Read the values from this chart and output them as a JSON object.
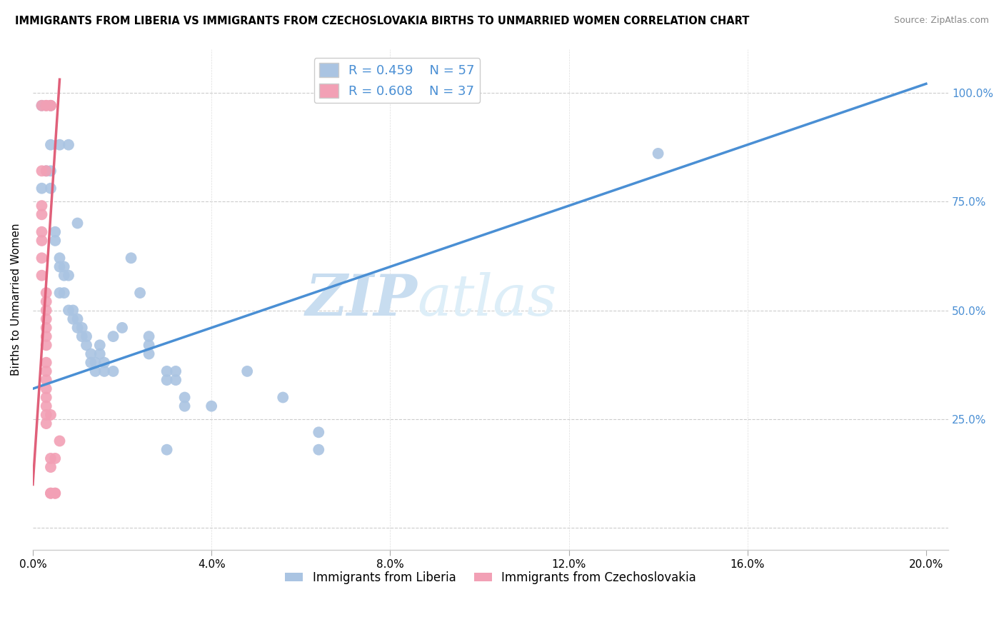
{
  "title": "IMMIGRANTS FROM LIBERIA VS IMMIGRANTS FROM CZECHOSLOVAKIA BIRTHS TO UNMARRIED WOMEN CORRELATION CHART",
  "source": "Source: ZipAtlas.com",
  "ylabel": "Births to Unmarried Women",
  "legend_blue_r": "R = 0.459",
  "legend_blue_n": "N = 57",
  "legend_pink_r": "R = 0.608",
  "legend_pink_n": "N = 37",
  "legend_label_blue": "Immigrants from Liberia",
  "legend_label_pink": "Immigrants from Czechoslovakia",
  "blue_color": "#aac4e2",
  "pink_color": "#f2a0b5",
  "blue_line_color": "#4a8fd4",
  "pink_line_color": "#e0607a",
  "watermark_zip": "ZIP",
  "watermark_atlas": "atlas",
  "watermark_color": "#ddeeff",
  "blue_scatter": [
    [
      0.002,
      0.97
    ],
    [
      0.004,
      0.97
    ],
    [
      0.004,
      0.88
    ],
    [
      0.006,
      0.88
    ],
    [
      0.008,
      0.88
    ],
    [
      0.003,
      0.82
    ],
    [
      0.004,
      0.82
    ],
    [
      0.002,
      0.78
    ],
    [
      0.004,
      0.78
    ],
    [
      0.005,
      0.68
    ],
    [
      0.005,
      0.66
    ],
    [
      0.006,
      0.62
    ],
    [
      0.006,
      0.6
    ],
    [
      0.007,
      0.6
    ],
    [
      0.007,
      0.58
    ],
    [
      0.008,
      0.58
    ],
    [
      0.006,
      0.54
    ],
    [
      0.007,
      0.54
    ],
    [
      0.008,
      0.5
    ],
    [
      0.009,
      0.5
    ],
    [
      0.009,
      0.48
    ],
    [
      0.01,
      0.48
    ],
    [
      0.01,
      0.46
    ],
    [
      0.011,
      0.46
    ],
    [
      0.011,
      0.44
    ],
    [
      0.012,
      0.44
    ],
    [
      0.012,
      0.42
    ],
    [
      0.013,
      0.4
    ],
    [
      0.013,
      0.38
    ],
    [
      0.014,
      0.38
    ],
    [
      0.014,
      0.36
    ],
    [
      0.015,
      0.42
    ],
    [
      0.015,
      0.4
    ],
    [
      0.016,
      0.38
    ],
    [
      0.016,
      0.36
    ],
    [
      0.018,
      0.44
    ],
    [
      0.018,
      0.36
    ],
    [
      0.02,
      0.46
    ],
    [
      0.022,
      0.62
    ],
    [
      0.024,
      0.54
    ],
    [
      0.026,
      0.44
    ],
    [
      0.026,
      0.42
    ],
    [
      0.026,
      0.4
    ],
    [
      0.03,
      0.36
    ],
    [
      0.03,
      0.34
    ],
    [
      0.032,
      0.36
    ],
    [
      0.032,
      0.34
    ],
    [
      0.034,
      0.3
    ],
    [
      0.034,
      0.28
    ],
    [
      0.04,
      0.28
    ],
    [
      0.048,
      0.36
    ],
    [
      0.056,
      0.3
    ],
    [
      0.064,
      0.22
    ],
    [
      0.03,
      0.18
    ],
    [
      0.064,
      0.18
    ],
    [
      0.14,
      0.86
    ],
    [
      0.01,
      0.7
    ]
  ],
  "pink_scatter": [
    [
      0.002,
      0.97
    ],
    [
      0.003,
      0.97
    ],
    [
      0.003,
      0.97
    ],
    [
      0.004,
      0.97
    ],
    [
      0.004,
      0.97
    ],
    [
      0.002,
      0.82
    ],
    [
      0.003,
      0.82
    ],
    [
      0.002,
      0.74
    ],
    [
      0.002,
      0.72
    ],
    [
      0.002,
      0.68
    ],
    [
      0.002,
      0.66
    ],
    [
      0.002,
      0.62
    ],
    [
      0.002,
      0.58
    ],
    [
      0.003,
      0.54
    ],
    [
      0.003,
      0.52
    ],
    [
      0.003,
      0.5
    ],
    [
      0.003,
      0.48
    ],
    [
      0.003,
      0.46
    ],
    [
      0.003,
      0.44
    ],
    [
      0.003,
      0.42
    ],
    [
      0.003,
      0.38
    ],
    [
      0.003,
      0.36
    ],
    [
      0.003,
      0.34
    ],
    [
      0.003,
      0.32
    ],
    [
      0.003,
      0.3
    ],
    [
      0.003,
      0.28
    ],
    [
      0.003,
      0.26
    ],
    [
      0.003,
      0.24
    ],
    [
      0.004,
      0.26
    ],
    [
      0.004,
      0.16
    ],
    [
      0.004,
      0.14
    ],
    [
      0.004,
      0.08
    ],
    [
      0.004,
      0.08
    ],
    [
      0.005,
      0.16
    ],
    [
      0.005,
      0.08
    ],
    [
      0.005,
      0.08
    ],
    [
      0.006,
      0.2
    ]
  ],
  "blue_line_pts": [
    [
      0.0,
      0.32
    ],
    [
      0.2,
      1.02
    ]
  ],
  "pink_line_pts": [
    [
      0.0,
      0.1
    ],
    [
      0.006,
      1.03
    ]
  ],
  "xlim": [
    0.0,
    0.205
  ],
  "ylim": [
    -0.05,
    1.1
  ],
  "x_ticks": [
    0.0,
    0.04,
    0.08,
    0.12,
    0.16,
    0.2
  ],
  "x_tick_labels": [
    "0.0%",
    "4.0%",
    "8.0%",
    "12.0%",
    "16.0%",
    "20.0%"
  ],
  "y_ticks": [
    0.0,
    0.25,
    0.5,
    0.75,
    1.0
  ],
  "y_tick_labels": [
    "",
    "25.0%",
    "50.0%",
    "75.0%",
    "100.0%"
  ]
}
